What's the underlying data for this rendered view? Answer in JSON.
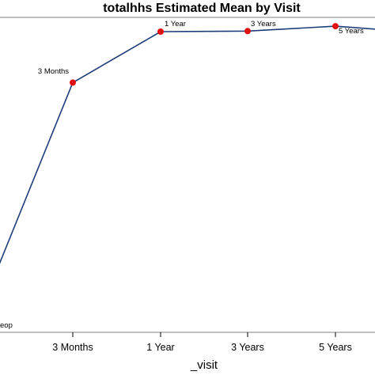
{
  "chart_data": {
    "type": "line",
    "title": "totalhhs Estimated Mean by Visit",
    "xlabel": "_visit",
    "ylabel": "",
    "categories": [
      "Preop",
      "3 Months",
      "1 Year",
      "3 Years",
      "5 Years"
    ],
    "tick_labels": [
      "3 Months",
      "1 Year",
      "3 Years",
      "5 Years"
    ],
    "point_labels": [
      "eop",
      "3 Months",
      "1 Year",
      "3 Years",
      "5 Years"
    ],
    "series": [
      {
        "values": [
          46.0,
          85.6,
          94.9,
          95.0,
          95.9
        ]
      }
    ],
    "ylim": [
      40,
      97.5
    ],
    "line_color": "#1f3d7a",
    "marker_color": "#e01010",
    "grid": false,
    "legend": "none"
  }
}
